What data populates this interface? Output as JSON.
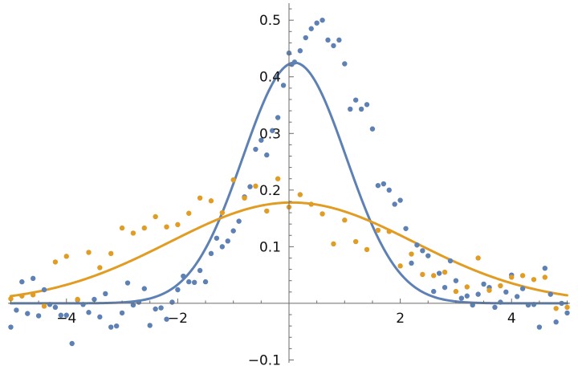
{
  "chart_data": {
    "type": "scatter",
    "title": "",
    "xlabel": "",
    "ylabel": "",
    "xlim": [
      -5.05,
      5.05
    ],
    "ylim": [
      -0.105,
      0.53
    ],
    "grid": false,
    "x_ticks": [
      {
        "value": -4,
        "label": "−4"
      },
      {
        "value": -2,
        "label": "−2"
      },
      {
        "value": 2,
        "label": "2"
      },
      {
        "value": 4,
        "label": "4"
      }
    ],
    "y_ticks": [
      {
        "value": -0.1,
        "label": "−0.1"
      },
      {
        "value": 0.1,
        "label": "0.1"
      },
      {
        "value": 0.2,
        "label": "0.2"
      },
      {
        "value": 0.3,
        "label": "0.3"
      },
      {
        "value": 0.4,
        "label": "0.4"
      },
      {
        "value": 0.5,
        "label": "0.5"
      }
    ],
    "series": [
      {
        "color": "#5e81b5",
        "kind": "points",
        "points": [
          [
            -5.0,
            -0.042
          ],
          [
            -4.9,
            -0.012
          ],
          [
            -4.8,
            0.038
          ],
          [
            -4.7,
            -0.018
          ],
          [
            -4.6,
            0.044
          ],
          [
            -4.5,
            -0.022
          ],
          [
            -4.4,
            0.024
          ],
          [
            -4.3,
            -0.002
          ],
          [
            -4.2,
            -0.007
          ],
          [
            -4.1,
            -0.021
          ],
          [
            -4.0,
            -0.021
          ],
          [
            -3.9,
            -0.071
          ],
          [
            -3.8,
            0.006
          ],
          [
            -3.7,
            -0.002
          ],
          [
            -3.6,
            -0.016
          ],
          [
            -3.5,
            0.007
          ],
          [
            -3.4,
            -0.024
          ],
          [
            -3.3,
            0.017
          ],
          [
            -3.2,
            -0.042
          ],
          [
            -3.1,
            -0.04
          ],
          [
            -3.0,
            -0.017
          ],
          [
            -2.9,
            0.036
          ],
          [
            -2.8,
            -0.003
          ],
          [
            -2.7,
            0.002
          ],
          [
            -2.6,
            0.026
          ],
          [
            -2.5,
            -0.039
          ],
          [
            -2.4,
            -0.01
          ],
          [
            -2.3,
            -0.008
          ],
          [
            -2.2,
            -0.028
          ],
          [
            -2.1,
            0.002
          ],
          [
            -2.0,
            0.024
          ],
          [
            -1.9,
            0.048
          ],
          [
            -1.8,
            0.038
          ],
          [
            -1.7,
            0.037
          ],
          [
            -1.6,
            0.058
          ],
          [
            -1.5,
            0.038
          ],
          [
            -1.4,
            0.088
          ],
          [
            -1.3,
            0.115
          ],
          [
            -1.2,
            0.1
          ],
          [
            -1.1,
            0.11
          ],
          [
            -1.0,
            0.128
          ],
          [
            -0.9,
            0.145
          ],
          [
            -0.8,
            0.188
          ],
          [
            -0.7,
            0.206
          ],
          [
            -0.6,
            0.272
          ],
          [
            -0.5,
            0.288
          ],
          [
            -0.4,
            0.262
          ],
          [
            -0.3,
            0.305
          ],
          [
            -0.2,
            0.328
          ],
          [
            -0.1,
            0.385
          ],
          [
            0.0,
            0.442
          ],
          [
            0.05,
            0.422
          ],
          [
            0.1,
            0.426
          ],
          [
            0.2,
            0.446
          ],
          [
            0.3,
            0.469
          ],
          [
            0.4,
            0.485
          ],
          [
            0.5,
            0.495
          ],
          [
            0.6,
            0.5
          ],
          [
            0.7,
            0.465
          ],
          [
            0.8,
            0.455
          ],
          [
            0.9,
            0.465
          ],
          [
            1.0,
            0.423
          ],
          [
            1.1,
            0.343
          ],
          [
            1.2,
            0.359
          ],
          [
            1.3,
            0.343
          ],
          [
            1.4,
            0.351
          ],
          [
            1.5,
            0.308
          ],
          [
            1.6,
            0.208
          ],
          [
            1.7,
            0.211
          ],
          [
            1.8,
            0.2
          ],
          [
            1.9,
            0.175
          ],
          [
            2.0,
            0.182
          ],
          [
            2.1,
            0.132
          ],
          [
            2.2,
            0.071
          ],
          [
            2.3,
            0.103
          ],
          [
            2.4,
            0.093
          ],
          [
            2.5,
            0.084
          ],
          [
            2.6,
            0.021
          ],
          [
            2.7,
            0.053
          ],
          [
            2.8,
            0.028
          ],
          [
            2.9,
            0.075
          ],
          [
            3.0,
            0.04
          ],
          [
            3.1,
            0.009
          ],
          [
            3.2,
            0.013
          ],
          [
            3.3,
            -0.003
          ],
          [
            3.4,
            0.016
          ],
          [
            3.5,
            0.034
          ],
          [
            3.6,
            0.028
          ],
          [
            3.7,
            -0.007
          ],
          [
            3.8,
            0.002
          ],
          [
            3.9,
            0.02
          ],
          [
            4.0,
            0.05
          ],
          [
            4.1,
            0.012
          ],
          [
            4.2,
            0.026
          ],
          [
            4.3,
            -0.003
          ],
          [
            4.4,
            -0.002
          ],
          [
            4.5,
            -0.042
          ],
          [
            4.6,
            0.062
          ],
          [
            4.7,
            0.016
          ],
          [
            4.8,
            -0.033
          ],
          [
            4.9,
            0.0
          ],
          [
            5.0,
            -0.017
          ]
        ]
      },
      {
        "color": "#e19c24",
        "kind": "points",
        "points": [
          [
            -5.0,
            0.008
          ],
          [
            -4.8,
            0.013
          ],
          [
            -4.6,
            0.015
          ],
          [
            -4.4,
            -0.005
          ],
          [
            -4.2,
            0.073
          ],
          [
            -4.0,
            0.083
          ],
          [
            -3.8,
            0.007
          ],
          [
            -3.6,
            0.09
          ],
          [
            -3.4,
            0.063
          ],
          [
            -3.2,
            0.088
          ],
          [
            -3.0,
            0.133
          ],
          [
            -2.8,
            0.124
          ],
          [
            -2.6,
            0.133
          ],
          [
            -2.4,
            0.153
          ],
          [
            -2.2,
            0.135
          ],
          [
            -2.0,
            0.139
          ],
          [
            -1.8,
            0.159
          ],
          [
            -1.6,
            0.186
          ],
          [
            -1.4,
            0.181
          ],
          [
            -1.2,
            0.16
          ],
          [
            -1.0,
            0.218
          ],
          [
            -0.8,
            0.186
          ],
          [
            -0.6,
            0.207
          ],
          [
            -0.4,
            0.163
          ],
          [
            -0.2,
            0.22
          ],
          [
            0.0,
            0.17
          ],
          [
            0.2,
            0.192
          ],
          [
            0.4,
            0.175
          ],
          [
            0.6,
            0.158
          ],
          [
            0.8,
            0.105
          ],
          [
            1.0,
            0.147
          ],
          [
            1.2,
            0.109
          ],
          [
            1.4,
            0.095
          ],
          [
            1.6,
            0.129
          ],
          [
            1.8,
            0.127
          ],
          [
            2.0,
            0.066
          ],
          [
            2.2,
            0.087
          ],
          [
            2.4,
            0.051
          ],
          [
            2.6,
            0.049
          ],
          [
            2.8,
            0.055
          ],
          [
            3.0,
            0.021
          ],
          [
            3.2,
            0.029
          ],
          [
            3.4,
            0.08
          ],
          [
            3.6,
            0.023
          ],
          [
            3.8,
            0.031
          ],
          [
            4.0,
            0.046
          ],
          [
            4.2,
            0.049
          ],
          [
            4.4,
            0.042
          ],
          [
            4.6,
            0.046
          ],
          [
            4.8,
            -0.009
          ],
          [
            5.0,
            -0.007
          ]
        ]
      },
      {
        "color": "#5e81b5",
        "kind": "curve",
        "function": "gaussian",
        "amplitude": 0.425,
        "center": 0.1,
        "sigma": 0.93
      },
      {
        "color": "#e19c24",
        "kind": "curve",
        "function": "gaussian",
        "amplitude": 0.178,
        "center": 0.05,
        "sigma": 2.2
      }
    ]
  }
}
